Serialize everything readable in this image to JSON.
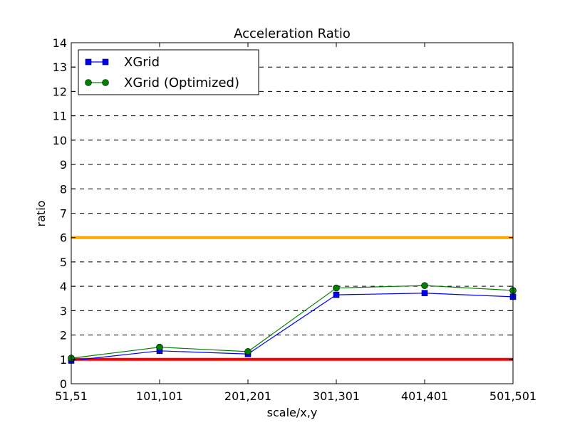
{
  "chart_data": {
    "type": "line",
    "title": "Acceleration Ratio",
    "xlabel": "scale/x,y",
    "ylabel": "ratio",
    "categories": [
      "51,51",
      "101,101",
      "201,201",
      "301,301",
      "401,401",
      "501,501"
    ],
    "ylim": [
      0,
      14
    ],
    "yticks": [
      0,
      1,
      2,
      3,
      4,
      5,
      6,
      7,
      8,
      9,
      10,
      11,
      12,
      13,
      14
    ],
    "grid": "horizontal-dashed",
    "legend_position": "top-left",
    "series": [
      {
        "name": "XGrid",
        "values": [
          0.95,
          1.35,
          1.22,
          3.65,
          3.72,
          3.57
        ],
        "color": "#0000ff",
        "marker": "square"
      },
      {
        "name": "XGrid (Optimized)",
        "values": [
          1.05,
          1.5,
          1.32,
          3.93,
          4.03,
          3.83
        ],
        "color": "#008000",
        "marker": "circle"
      }
    ],
    "reference_lines": [
      {
        "value": 6,
        "color": "#ffa500"
      },
      {
        "value": 1,
        "color": "#ff0000"
      }
    ]
  }
}
